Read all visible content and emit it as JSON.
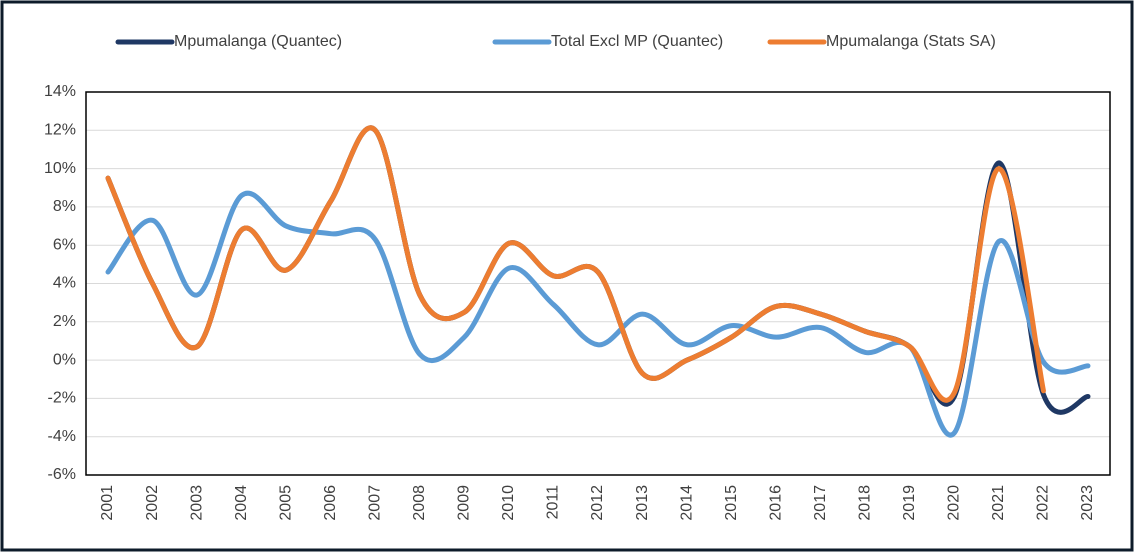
{
  "chart_data": {
    "type": "line",
    "categories": [
      "2001",
      "2002",
      "2003",
      "2004",
      "2005",
      "2006",
      "2007",
      "2008",
      "2009",
      "2010",
      "2011",
      "2012",
      "2013",
      "2014",
      "2015",
      "2016",
      "2017",
      "2018",
      "2019",
      "2020",
      "2021",
      "2022",
      "2023"
    ],
    "series": [
      {
        "name": "Mpumalanga (Quantec)",
        "color": "#1f3864",
        "values": [
          9.5,
          4.0,
          0.7,
          6.8,
          4.7,
          8.3,
          12.0,
          3.4,
          2.5,
          6.1,
          4.4,
          4.6,
          -0.7,
          0.0,
          1.2,
          2.8,
          2.4,
          1.5,
          0.7,
          -1.9,
          10.3,
          -1.8,
          -1.9
        ]
      },
      {
        "name": "Total Excl MP (Quantec)",
        "color": "#5b9bd5",
        "values": [
          4.6,
          7.3,
          3.4,
          8.6,
          7.0,
          6.6,
          6.3,
          0.3,
          1.2,
          4.8,
          2.9,
          0.8,
          2.4,
          0.8,
          1.8,
          1.2,
          1.7,
          0.4,
          0.7,
          -3.8,
          6.2,
          -0.1,
          -0.3
        ]
      },
      {
        "name": "Mpumalanga (Stats SA)",
        "color": "#ed7d31",
        "values": [
          9.5,
          4.0,
          0.7,
          6.8,
          4.7,
          8.3,
          12.0,
          3.4,
          2.5,
          6.1,
          4.4,
          4.6,
          -0.7,
          0.0,
          1.2,
          2.8,
          2.4,
          1.5,
          0.7,
          -1.7,
          10.0,
          -1.6,
          null
        ]
      }
    ],
    "ylim": [
      -6,
      14
    ],
    "yticks": [
      {
        "value": -6,
        "label": "-6%"
      },
      {
        "value": -4,
        "label": "-4%"
      },
      {
        "value": -2,
        "label": "-2%"
      },
      {
        "value": 0,
        "label": "0%"
      },
      {
        "value": 2,
        "label": "2%"
      },
      {
        "value": 4,
        "label": "4%"
      },
      {
        "value": 6,
        "label": "6%"
      },
      {
        "value": 8,
        "label": "8%"
      },
      {
        "value": 10,
        "label": "10%"
      },
      {
        "value": 12,
        "label": "12%"
      },
      {
        "value": 14,
        "label": "14%"
      }
    ],
    "grid": true,
    "smooth": true,
    "legend": "top"
  }
}
